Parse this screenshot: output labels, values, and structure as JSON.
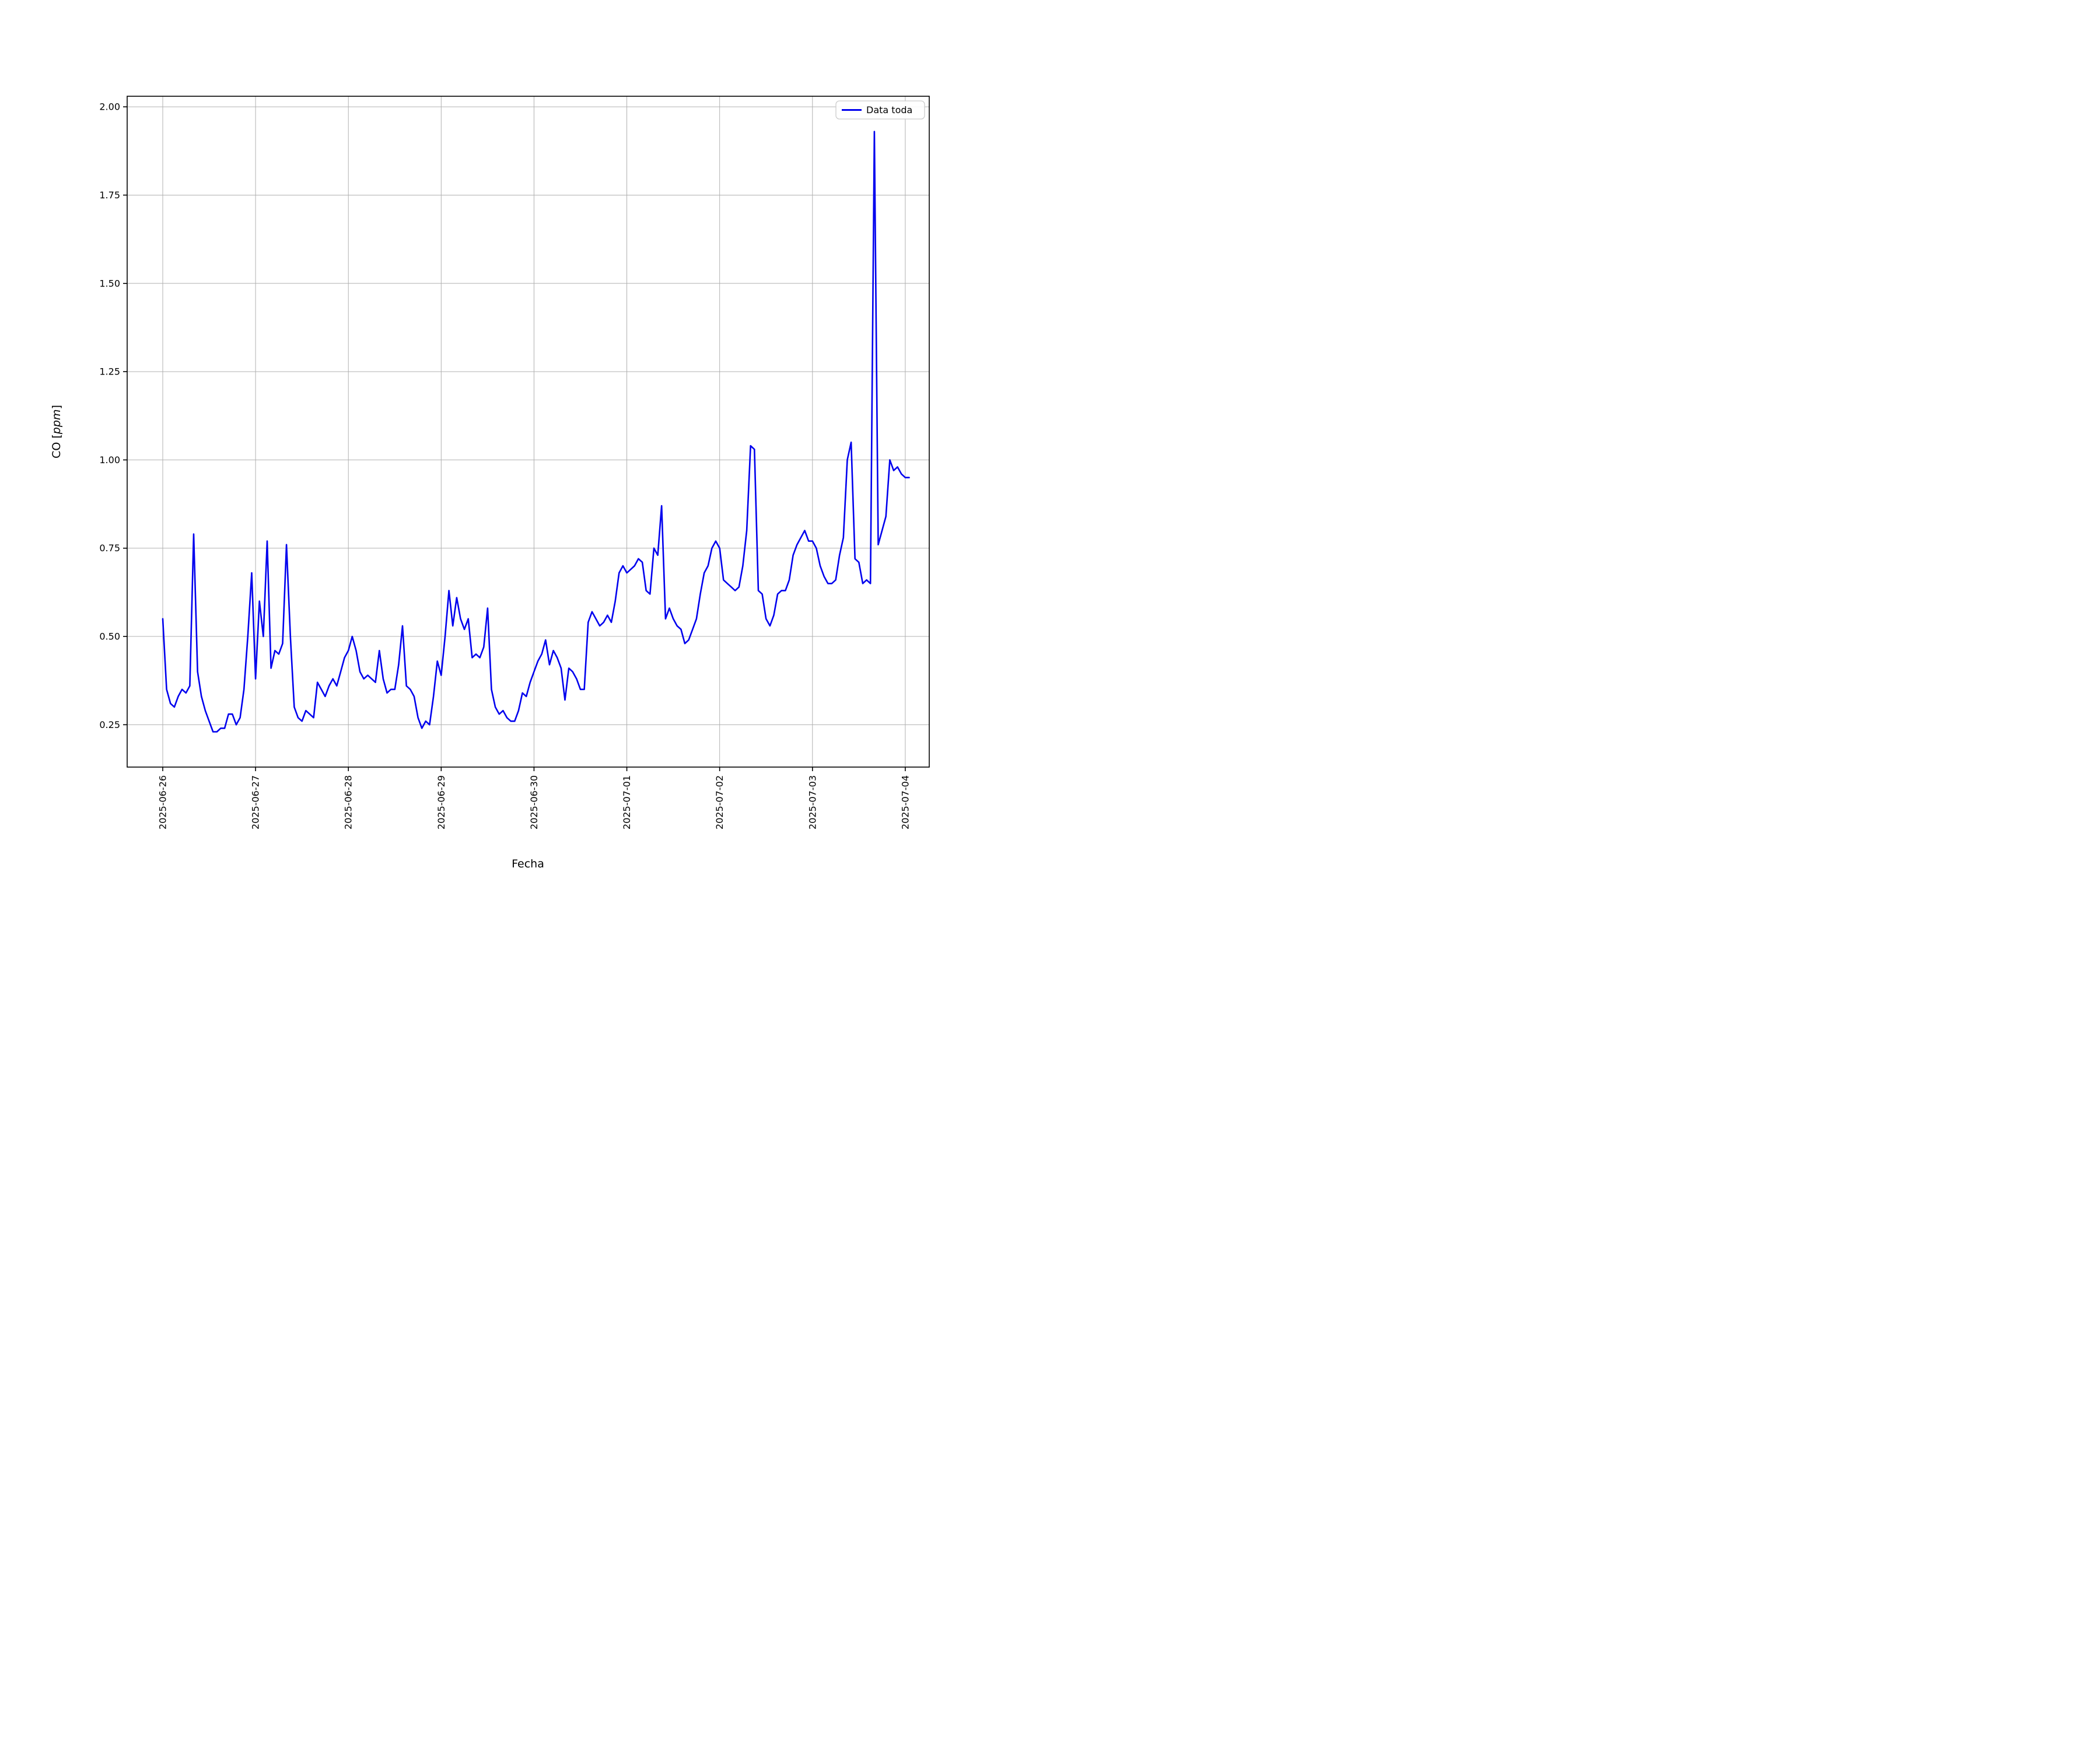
{
  "figure": {
    "background": "#ffffff"
  },
  "chart_data": {
    "type": "line",
    "title": "",
    "xlabel": "Fecha",
    "ylabel": "CO [ppm]",
    "ylabel_parts": {
      "prefix": "CO [",
      "italic": "ppm",
      "suffix": "]"
    },
    "legend": {
      "label": "Data toda",
      "position": "upper right"
    },
    "grid": true,
    "axes": {
      "ylim": [
        0.13,
        2.03
      ],
      "xlim_hours": [
        -9.2,
        198.2
      ],
      "y_ticks": [
        0.25,
        0.5,
        0.75,
        1.0,
        1.25,
        1.5,
        1.75,
        2.0
      ],
      "y_tick_labels": [
        "0.25",
        "0.50",
        "0.75",
        "1.00",
        "1.25",
        "1.50",
        "1.75",
        "2.00"
      ],
      "x_tick_hours": [
        0,
        24,
        48,
        72,
        96,
        120,
        144,
        168,
        192
      ],
      "x_tick_labels": [
        "2025-06-26",
        "2025-06-27",
        "2025-06-28",
        "2025-06-29",
        "2025-06-30",
        "2025-07-01",
        "2025-07-02",
        "2025-07-03",
        "2025-07-04"
      ]
    },
    "series": [
      {
        "name": "Data toda",
        "color": "#0000ee",
        "x_unit": "hours since 2025-06-26 00:00",
        "x_start_hour": 0,
        "x_step_hours": 1,
        "y_ppm": [
          0.55,
          0.35,
          0.31,
          0.3,
          0.33,
          0.35,
          0.34,
          0.36,
          0.79,
          0.4,
          0.33,
          0.29,
          0.26,
          0.23,
          0.23,
          0.24,
          0.24,
          0.28,
          0.28,
          0.25,
          0.27,
          0.35,
          0.5,
          0.68,
          0.38,
          0.6,
          0.5,
          0.77,
          0.41,
          0.46,
          0.45,
          0.48,
          0.76,
          0.5,
          0.3,
          0.27,
          0.26,
          0.29,
          0.28,
          0.27,
          0.37,
          0.35,
          0.33,
          0.36,
          0.38,
          0.36,
          0.4,
          0.44,
          0.46,
          0.5,
          0.46,
          0.4,
          0.38,
          0.39,
          0.38,
          0.37,
          0.46,
          0.38,
          0.34,
          0.35,
          0.35,
          0.42,
          0.53,
          0.36,
          0.35,
          0.33,
          0.27,
          0.24,
          0.26,
          0.25,
          0.33,
          0.43,
          0.39,
          0.5,
          0.63,
          0.53,
          0.61,
          0.55,
          0.52,
          0.55,
          0.44,
          0.45,
          0.44,
          0.47,
          0.58,
          0.35,
          0.3,
          0.28,
          0.29,
          0.27,
          0.26,
          0.26,
          0.29,
          0.34,
          0.33,
          0.37,
          0.4,
          0.43,
          0.45,
          0.49,
          0.42,
          0.46,
          0.44,
          0.41,
          0.32,
          0.41,
          0.4,
          0.38,
          0.35,
          0.35,
          0.54,
          0.57,
          0.55,
          0.53,
          0.54,
          0.56,
          0.54,
          0.6,
          0.68,
          0.7,
          0.68,
          0.69,
          0.7,
          0.72,
          0.71,
          0.63,
          0.62,
          0.75,
          0.73,
          0.87,
          0.55,
          0.58,
          0.55,
          0.53,
          0.52,
          0.48,
          0.49,
          0.52,
          0.55,
          0.62,
          0.68,
          0.7,
          0.75,
          0.77,
          0.75,
          0.66,
          0.65,
          0.64,
          0.63,
          0.64,
          0.7,
          0.8,
          1.04,
          1.03,
          0.63,
          0.62,
          0.55,
          0.53,
          0.56,
          0.62,
          0.63,
          0.63,
          0.66,
          0.73,
          0.76,
          0.78,
          0.8,
          0.77,
          0.77,
          0.75,
          0.7,
          0.67,
          0.65,
          0.65,
          0.66,
          0.73,
          0.78,
          1.0,
          1.05,
          0.72,
          0.71,
          0.65,
          0.66,
          0.65,
          1.93,
          0.76,
          0.8,
          0.84,
          1.0,
          0.97,
          0.98,
          0.96,
          0.95,
          0.95
        ]
      }
    ],
    "colors": {
      "line": "#0000ee",
      "grid": "#b0b0b0",
      "axes": "#000000",
      "background": "#ffffff",
      "legend_border": "#cccccc"
    }
  }
}
